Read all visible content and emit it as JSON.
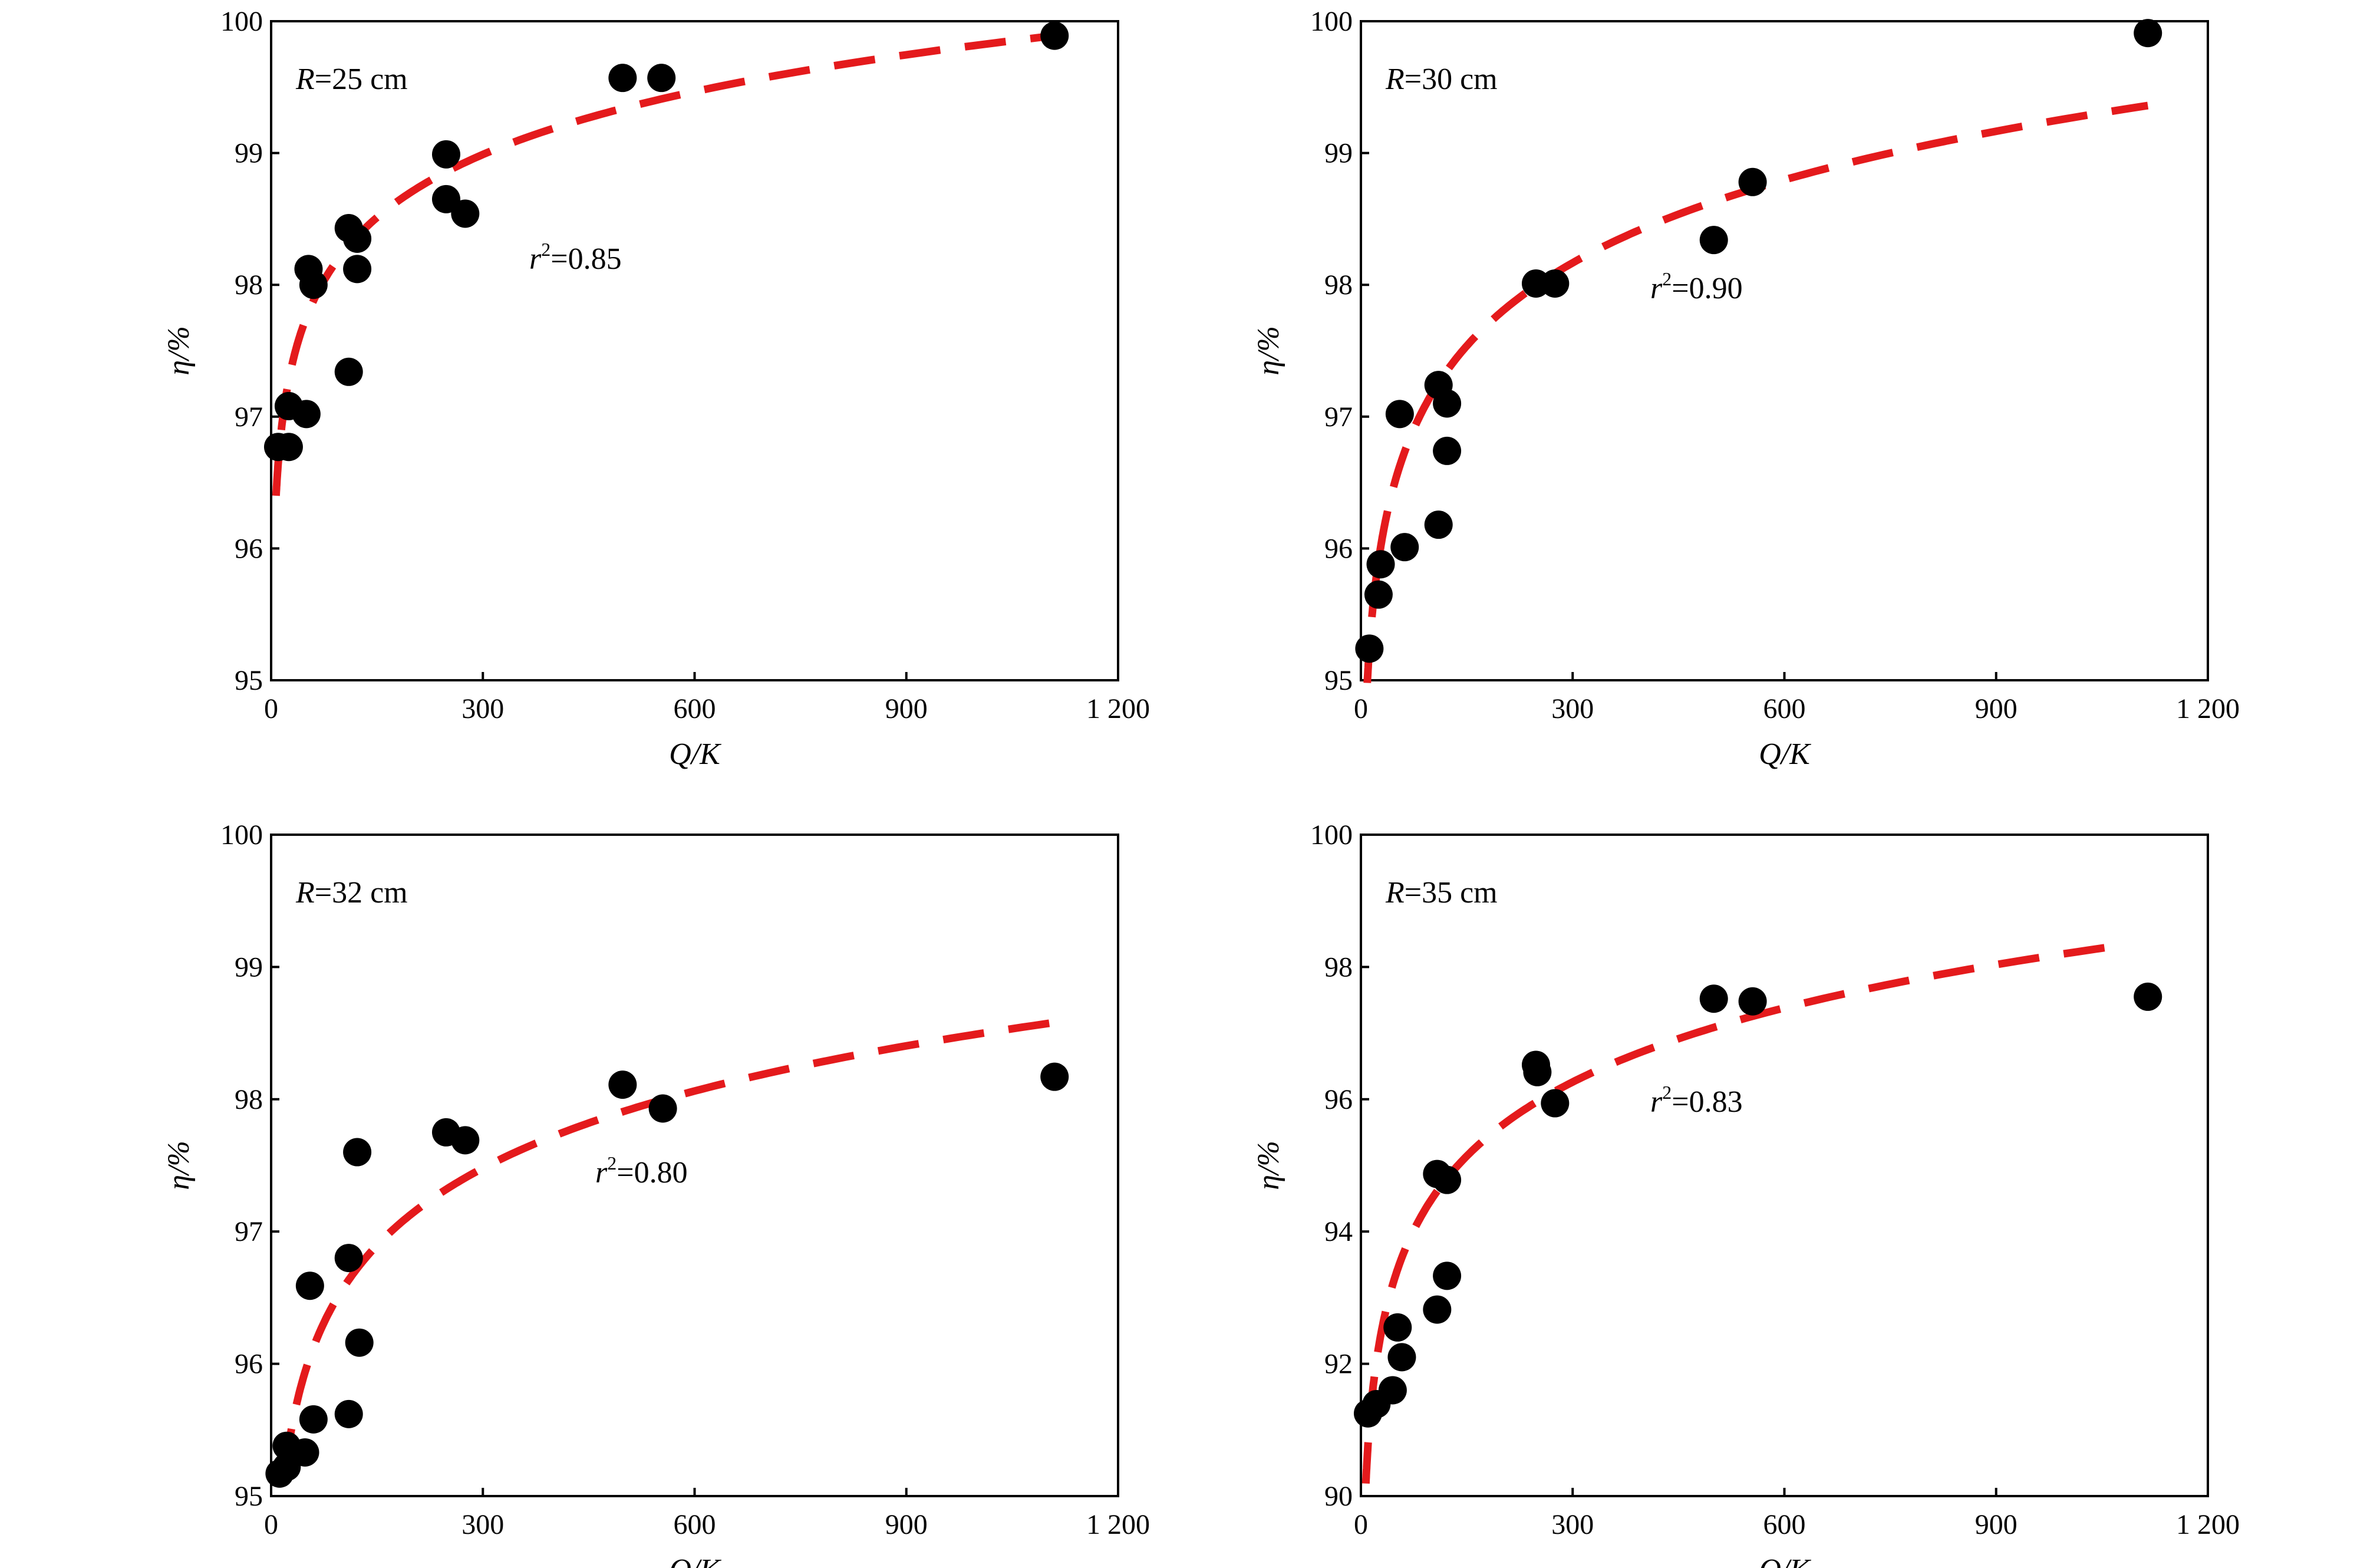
{
  "chart_data": [
    {
      "type": "scatter",
      "panel_label": "R=25 cm",
      "panel_label_parts": {
        "var": "R",
        "rest": "=25 cm"
      },
      "r2_label": {
        "var": "r",
        "sup": "2",
        "rest": "=0.85"
      },
      "xlabel": "Q/K",
      "ylabel": "η/%",
      "xlim": [
        0,
        1200
      ],
      "ylim": [
        95,
        100
      ],
      "xticks": [
        0,
        300,
        600,
        900,
        1200
      ],
      "xtick_labels": [
        "0",
        "300",
        "600",
        "900",
        "1 200"
      ],
      "yticks": [
        95,
        96,
        97,
        98,
        99,
        100
      ],
      "ytick_labels": [
        "95",
        "96",
        "97",
        "98",
        "99",
        "100"
      ],
      "points": [
        {
          "x": 10,
          "y": 96.77
        },
        {
          "x": 25,
          "y": 96.77
        },
        {
          "x": 25,
          "y": 97.08
        },
        {
          "x": 50,
          "y": 97.02
        },
        {
          "x": 53,
          "y": 98.12
        },
        {
          "x": 60,
          "y": 98.0
        },
        {
          "x": 110,
          "y": 97.34
        },
        {
          "x": 110,
          "y": 98.43
        },
        {
          "x": 122,
          "y": 98.35
        },
        {
          "x": 122,
          "y": 98.12
        },
        {
          "x": 248,
          "y": 98.99
        },
        {
          "x": 248,
          "y": 98.65
        },
        {
          "x": 275,
          "y": 98.54
        },
        {
          "x": 498,
          "y": 99.57
        },
        {
          "x": 553,
          "y": 99.57
        },
        {
          "x": 1110,
          "y": 99.89
        }
      ],
      "fit": {
        "model": "logarithmic",
        "x_range": [
          7,
          1110
        ],
        "y_start": 96.4,
        "y_end": 99.89
      }
    },
    {
      "type": "scatter",
      "panel_label": "R=30 cm",
      "panel_label_parts": {
        "var": "R",
        "rest": "=30 cm"
      },
      "r2_label": {
        "var": "r",
        "sup": "2",
        "rest": "=0.90"
      },
      "xlabel": "Q/K",
      "ylabel": "η/%",
      "xlim": [
        0,
        1200
      ],
      "ylim": [
        95,
        100
      ],
      "xticks": [
        0,
        300,
        600,
        900,
        1200
      ],
      "xtick_labels": [
        "0",
        "300",
        "600",
        "900",
        "1 200"
      ],
      "yticks": [
        95,
        96,
        97,
        98,
        99,
        100
      ],
      "ytick_labels": [
        "95",
        "96",
        "97",
        "98",
        "99",
        "100"
      ],
      "points": [
        {
          "x": 12,
          "y": 95.24
        },
        {
          "x": 25,
          "y": 95.65
        },
        {
          "x": 28,
          "y": 95.88
        },
        {
          "x": 55,
          "y": 97.02
        },
        {
          "x": 62,
          "y": 96.01
        },
        {
          "x": 110,
          "y": 97.24
        },
        {
          "x": 110,
          "y": 96.18
        },
        {
          "x": 122,
          "y": 97.1
        },
        {
          "x": 122,
          "y": 96.74
        },
        {
          "x": 248,
          "y": 98.01
        },
        {
          "x": 275,
          "y": 98.01
        },
        {
          "x": 500,
          "y": 98.34
        },
        {
          "x": 555,
          "y": 98.78
        },
        {
          "x": 1115,
          "y": 99.91
        }
      ],
      "fit": {
        "model": "logarithmic",
        "x_range": [
          9,
          1115
        ],
        "y_start": 94.98,
        "y_end": 99.36
      }
    },
    {
      "type": "scatter",
      "panel_label": "R=32 cm",
      "panel_label_parts": {
        "var": "R",
        "rest": "=32 cm"
      },
      "r2_label": {
        "var": "r",
        "sup": "2",
        "rest": "=0.80"
      },
      "xlabel": "Q/K",
      "ylabel": "η/%",
      "xlim": [
        0,
        1200
      ],
      "ylim": [
        95,
        100
      ],
      "xticks": [
        0,
        300,
        600,
        900,
        1200
      ],
      "xtick_labels": [
        "0",
        "300",
        "600",
        "900",
        "1 200"
      ],
      "yticks": [
        95,
        96,
        97,
        98,
        99,
        100
      ],
      "ytick_labels": [
        "95",
        "96",
        "97",
        "98",
        "99",
        "100"
      ],
      "points": [
        {
          "x": 12,
          "y": 95.17
        },
        {
          "x": 22,
          "y": 95.22
        },
        {
          "x": 22,
          "y": 95.38
        },
        {
          "x": 48,
          "y": 95.33
        },
        {
          "x": 55,
          "y": 96.59
        },
        {
          "x": 60,
          "y": 95.58
        },
        {
          "x": 110,
          "y": 96.8
        },
        {
          "x": 110,
          "y": 95.62
        },
        {
          "x": 122,
          "y": 97.6
        },
        {
          "x": 125,
          "y": 96.16
        },
        {
          "x": 248,
          "y": 97.75
        },
        {
          "x": 275,
          "y": 97.69
        },
        {
          "x": 498,
          "y": 98.11
        },
        {
          "x": 555,
          "y": 97.93
        },
        {
          "x": 1110,
          "y": 98.17
        }
      ],
      "fit": {
        "model": "logarithmic",
        "x_range": [
          20,
          1110
        ],
        "y_start": 95.2,
        "y_end": 98.58
      }
    },
    {
      "type": "scatter",
      "panel_label": "R=35 cm",
      "panel_label_parts": {
        "var": "R",
        "rest": "=35 cm"
      },
      "r2_label": {
        "var": "r",
        "sup": "2",
        "rest": "=0.83"
      },
      "xlabel": "Q/K",
      "ylabel": "η/%",
      "xlim": [
        0,
        1200
      ],
      "ylim": [
        90,
        100
      ],
      "xticks": [
        0,
        300,
        600,
        900,
        1200
      ],
      "xtick_labels": [
        "0",
        "300",
        "600",
        "900",
        "1 200"
      ],
      "yticks": [
        90,
        92,
        94,
        96,
        98,
        100
      ],
      "ytick_labels": [
        "90",
        "92",
        "94",
        "96",
        "98",
        "100"
      ],
      "points": [
        {
          "x": 10,
          "y": 91.25
        },
        {
          "x": 22,
          "y": 91.39
        },
        {
          "x": 45,
          "y": 91.6
        },
        {
          "x": 52,
          "y": 92.55
        },
        {
          "x": 58,
          "y": 92.1
        },
        {
          "x": 108,
          "y": 94.87
        },
        {
          "x": 108,
          "y": 92.82
        },
        {
          "x": 122,
          "y": 94.78
        },
        {
          "x": 122,
          "y": 93.33
        },
        {
          "x": 248,
          "y": 96.52
        },
        {
          "x": 250,
          "y": 96.41
        },
        {
          "x": 275,
          "y": 95.94
        },
        {
          "x": 500,
          "y": 97.52
        },
        {
          "x": 555,
          "y": 97.48
        },
        {
          "x": 1115,
          "y": 97.55
        }
      ],
      "fit": {
        "model": "logarithmic",
        "x_range": [
          7,
          1080
        ],
        "y_start": 90.19,
        "y_end": 98.33
      }
    }
  ]
}
